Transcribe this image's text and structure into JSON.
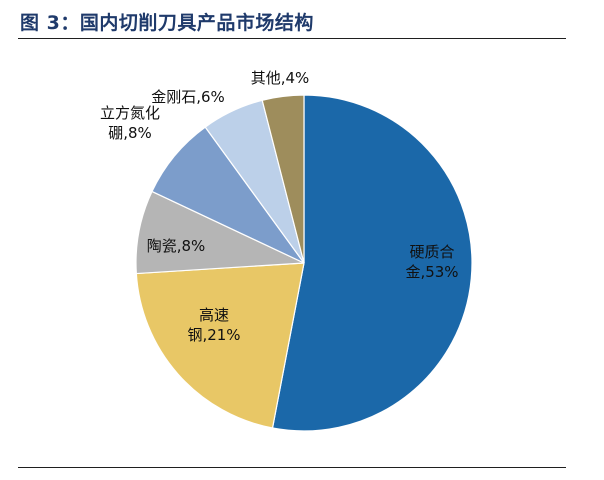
{
  "figure": {
    "title": "图 3：国内切削刀具产品市场结构"
  },
  "chart_data": {
    "type": "pie",
    "title": "图 3：国内切削刀具产品市场结构",
    "unit": "%",
    "slices": [
      {
        "label": "硬质合金",
        "value": 53,
        "display": [
          "硬质合",
          "金,53%"
        ],
        "color": "#1b68a9"
      },
      {
        "label": "高速钢",
        "value": 21,
        "display": [
          "高速",
          "钢,21%"
        ],
        "color": "#e8c766"
      },
      {
        "label": "陶瓷",
        "value": 8,
        "display": [
          "陶瓷,8%"
        ],
        "color": "#b5b5b5"
      },
      {
        "label": "立方氮化硼",
        "value": 8,
        "display": [
          "立方氮化",
          "硼,8%"
        ],
        "color": "#7c9dcb"
      },
      {
        "label": "金刚石",
        "value": 6,
        "display": [
          "金刚石,6%"
        ],
        "color": "#bcd0e9"
      },
      {
        "label": "其他",
        "value": 4,
        "display": [
          "其他,4%"
        ],
        "color": "#9e8d5c"
      }
    ]
  }
}
